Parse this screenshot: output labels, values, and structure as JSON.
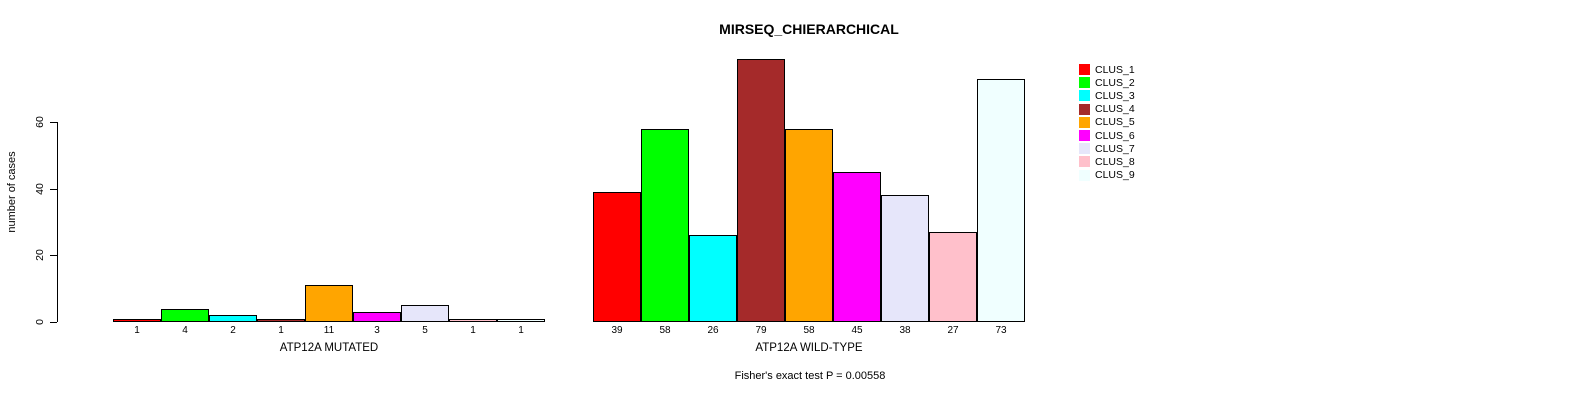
{
  "chart_data": {
    "type": "bar",
    "title": "MIRSEQ_CHIERARCHICAL",
    "ylabel": "number of cases",
    "yticks": [
      0,
      20,
      40,
      60
    ],
    "ylim": [
      0,
      79
    ],
    "grid": false,
    "legend_position": "right",
    "categories": [
      "CLUS_1",
      "CLUS_2",
      "CLUS_3",
      "CLUS_4",
      "CLUS_5",
      "CLUS_6",
      "CLUS_7",
      "CLUS_8",
      "CLUS_9"
    ],
    "cluster_colors": [
      "#FF0000",
      "#00FF00",
      "#00FFFF",
      "#A52A2A",
      "#FFA500",
      "#FF00FF",
      "#E6E6FA",
      "#FFC0CB",
      "#F0FFFF"
    ],
    "groups": [
      {
        "label": "ATP12A MUTATED",
        "values": [
          1,
          4,
          2,
          1,
          11,
          3,
          5,
          1,
          1
        ]
      },
      {
        "label": "ATP12A WILD-TYPE",
        "values": [
          39,
          58,
          26,
          79,
          58,
          45,
          38,
          27,
          73
        ]
      }
    ],
    "annotation": "Fisher's exact test P = 0.00558",
    "axis_color": "#000000",
    "background_color": "#FFFFFF"
  }
}
